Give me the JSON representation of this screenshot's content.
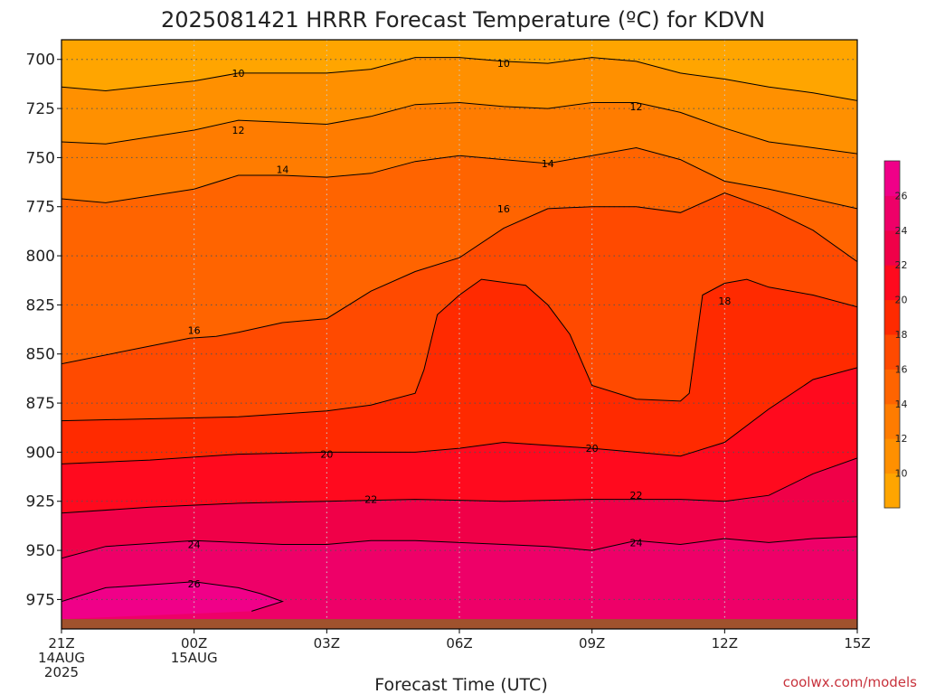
{
  "chart_data": {
    "type": "heatmap",
    "title": "2025081421 HRRR Forecast Temperature (ºC) for KDVN",
    "xlabel": "Forecast Time (UTC)",
    "credit": "coolwx.com/models",
    "y_axis": {
      "ticks": [
        700,
        725,
        750,
        775,
        800,
        825,
        850,
        875,
        900,
        925,
        950,
        975
      ],
      "ylim": [
        990,
        690
      ],
      "inverted": true
    },
    "x_axis": {
      "ticks": [
        {
          "hour": 0,
          "lines": [
            "21Z",
            "14AUG",
            "2025"
          ]
        },
        {
          "hour": 3,
          "lines": [
            "00Z",
            "15AUG"
          ]
        },
        {
          "hour": 6,
          "lines": [
            "03Z"
          ]
        },
        {
          "hour": 9,
          "lines": [
            "06Z"
          ]
        },
        {
          "hour": 12,
          "lines": [
            "09Z"
          ]
        },
        {
          "hour": 15,
          "lines": [
            "12Z"
          ]
        },
        {
          "hour": 18,
          "lines": [
            "15Z"
          ]
        }
      ],
      "xlim": [
        0,
        18
      ],
      "unit": "hours since 21Z 14AUG 2025"
    },
    "grid": true,
    "surface_color": "#a0522d",
    "colorbar": {
      "placement": "right",
      "levels": [
        8,
        10,
        12,
        14,
        16,
        18,
        20,
        22,
        24,
        26,
        28
      ],
      "tick_labels": [
        10,
        12,
        14,
        16,
        18,
        20,
        22,
        24,
        26
      ],
      "colors": [
        "#ffa500",
        "#ff9000",
        "#ff7c00",
        "#ff6400",
        "#ff4a00",
        "#ff2a00",
        "#ff0a1e",
        "#f00048",
        "#ee0068",
        "#f00088"
      ]
    },
    "contours": [
      {
        "level": 10,
        "hours": [
          0,
          1,
          3,
          4,
          5,
          6,
          7,
          8,
          9,
          10,
          11,
          12,
          13,
          14,
          15,
          16,
          17,
          18
        ],
        "pressure": [
          714,
          716,
          711,
          707,
          707,
          707,
          705,
          699,
          699,
          701,
          702,
          699,
          701,
          707,
          710,
          714,
          717,
          721
        ]
      },
      {
        "level": 12,
        "hours": [
          0,
          1,
          3,
          4,
          5,
          6,
          7,
          8,
          9,
          10,
          11,
          12,
          13,
          14,
          15,
          16,
          17,
          18
        ],
        "pressure": [
          742,
          743,
          736,
          731,
          732,
          733,
          729,
          723,
          722,
          724,
          725,
          722,
          722,
          727,
          735,
          742,
          745,
          748
        ]
      },
      {
        "level": 14,
        "hours": [
          0,
          1,
          3,
          4,
          5,
          6,
          7,
          8,
          9,
          10,
          11,
          12,
          13,
          14,
          15,
          16,
          17,
          18
        ],
        "pressure": [
          771,
          773,
          766,
          759,
          759,
          760,
          758,
          752,
          749,
          751,
          753,
          749,
          745,
          751,
          762,
          766,
          771,
          776
        ]
      },
      {
        "level": 16,
        "hours": [
          0,
          2,
          2.9,
          3.5,
          4,
          5,
          6,
          7,
          8,
          9,
          10,
          11,
          12,
          13,
          14,
          15,
          16,
          17,
          18
        ],
        "pressure": [
          855,
          846,
          842,
          841,
          839,
          834,
          832,
          818,
          808,
          801,
          786,
          776,
          775,
          775,
          778,
          768,
          776,
          787,
          803
        ]
      },
      {
        "level": 18,
        "hours": [
          0,
          2,
          4,
          6,
          7,
          8,
          8.2,
          8.5,
          9,
          9.5,
          10.5,
          11,
          11.5,
          12,
          13,
          14,
          14.2,
          14.5,
          15,
          15.5,
          16,
          17,
          18
        ],
        "pressure": [
          884,
          883,
          882,
          879,
          876,
          870,
          858,
          830,
          820,
          812,
          815,
          825,
          840,
          866,
          873,
          874,
          870,
          820,
          814,
          812,
          816,
          820,
          826
        ]
      },
      {
        "level": 20,
        "hours": [
          0,
          2,
          4,
          6,
          8,
          9,
          10,
          12,
          14,
          15,
          16,
          17,
          18
        ],
        "pressure": [
          906,
          904,
          901,
          900,
          900,
          898,
          895,
          898,
          902,
          895,
          878,
          863,
          857
        ]
      },
      {
        "level": 22,
        "hours": [
          0,
          2,
          4,
          6,
          8,
          10,
          12,
          14,
          15,
          16,
          17,
          18
        ],
        "pressure": [
          931,
          928,
          926,
          925,
          924,
          925,
          924,
          924,
          925,
          922,
          911,
          903
        ]
      },
      {
        "level": 24,
        "hours": [
          0,
          1,
          3,
          4,
          5,
          6,
          7,
          8,
          9,
          10,
          11,
          12,
          13,
          14,
          15,
          16,
          17,
          18
        ],
        "pressure": [
          954,
          948,
          945,
          946,
          947,
          947,
          945,
          945,
          946,
          947,
          948,
          950,
          945,
          947,
          944,
          946,
          944,
          943
        ]
      },
      {
        "level": 26,
        "hours": [
          0,
          1,
          3,
          4,
          4.5,
          5,
          4.3
        ],
        "pressure": [
          976,
          969,
          966,
          969,
          972,
          976,
          981
        ]
      }
    ],
    "contour_labels": [
      {
        "text": "10",
        "hour": 4.0,
        "pressure": 707
      },
      {
        "text": "10",
        "hour": 10.0,
        "pressure": 702
      },
      {
        "text": "12",
        "hour": 4.0,
        "pressure": 736
      },
      {
        "text": "12",
        "hour": 13.0,
        "pressure": 724
      },
      {
        "text": "14",
        "hour": 5.0,
        "pressure": 756
      },
      {
        "text": "14",
        "hour": 11.0,
        "pressure": 753
      },
      {
        "text": "16",
        "hour": 3.0,
        "pressure": 838
      },
      {
        "text": "16",
        "hour": 10.0,
        "pressure": 776
      },
      {
        "text": "18",
        "hour": 15.0,
        "pressure": 823
      },
      {
        "text": "20",
        "hour": 6.0,
        "pressure": 901
      },
      {
        "text": "20",
        "hour": 12.0,
        "pressure": 898
      },
      {
        "text": "22",
        "hour": 7.0,
        "pressure": 924
      },
      {
        "text": "22",
        "hour": 13.0,
        "pressure": 922
      },
      {
        "text": "24",
        "hour": 3.0,
        "pressure": 947
      },
      {
        "text": "24",
        "hour": 13.0,
        "pressure": 946
      },
      {
        "text": "26",
        "hour": 3.0,
        "pressure": 967
      }
    ]
  }
}
